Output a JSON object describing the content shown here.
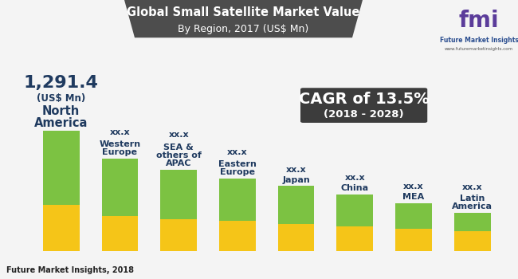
{
  "chart_data": {
    "type": "bar",
    "stacked": true,
    "title": "Global Small Satellite Market Value",
    "subtitle": "By Region, 2017 (US$ Mn)",
    "categories": [
      "North America",
      "Western Europe",
      "SEA & others of APAC",
      "Eastern Europe",
      "Japan",
      "China",
      "MEA",
      "Latin America"
    ],
    "series": [
      {
        "color": "#f5c518",
        "values": [
          494.0,
          380,
          342,
          327,
          289,
          266,
          236,
          213
        ]
      },
      {
        "color": "#7cc242",
        "values": [
          797.4,
          616,
          532,
          456,
          410,
          342,
          281,
          197
        ]
      }
    ],
    "bar_labels": [
      "1,291.4",
      "xx.x",
      "xx.x",
      "xx.x",
      "xx.x",
      "xx.x",
      "xx.x",
      "xx.x"
    ],
    "unit_labels": [
      "(US$ Mn)",
      null,
      null,
      null,
      null,
      null,
      null,
      null
    ],
    "tick_labels": false,
    "grid": false,
    "annotations": [
      "CAGR of 13.5%",
      "(2018 - 2028)"
    ],
    "source": "Future Market Insights, 2018",
    "logo": {
      "name": "fmi",
      "text": "Future Market Insights",
      "url": "www.futuremarketinsights.com"
    }
  }
}
